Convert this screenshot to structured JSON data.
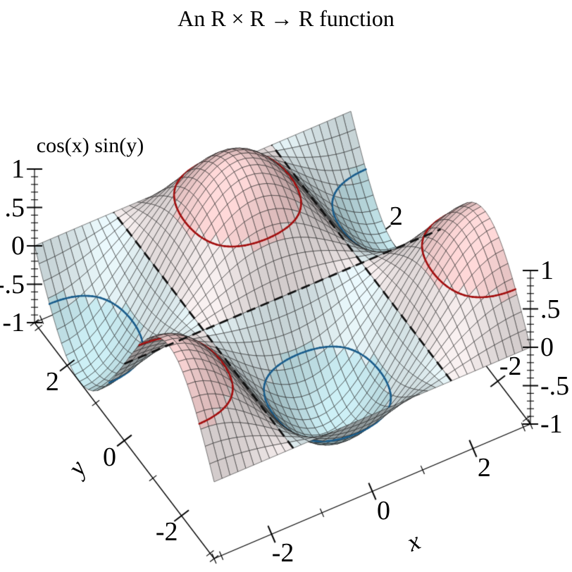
{
  "title": "An R × R → R function",
  "chart_data": {
    "type": "surface3d",
    "title": "An R × R → R function",
    "function": "z = cos(x) * sin(y)",
    "x_label": "x",
    "y_label": "y",
    "z_label": "cos(x) sin(y)",
    "axes": {
      "x": {
        "label": "x",
        "min": -3.14159265,
        "max": 3.14159265,
        "major_ticks": [
          -2,
          0,
          2
        ],
        "minor_ticks": [
          -3,
          -1,
          1,
          3
        ]
      },
      "y": {
        "label": "y",
        "min": -3.14159265,
        "max": 3.14159265,
        "major_ticks": [
          2,
          0,
          -2
        ],
        "minor_ticks": [
          3,
          1,
          -1,
          -3
        ],
        "rear_visible_labels": [
          2,
          -2
        ]
      },
      "z": {
        "label": "cos(x) sin(y)",
        "min": -1,
        "max": 1,
        "major_ticks": [
          1,
          0.5,
          0,
          -0.5,
          -1
        ],
        "major_tick_labels": [
          "1",
          ".5",
          "0",
          "-.5",
          "-1"
        ],
        "minor_tick_step": 0.1
      }
    },
    "mesh": {
      "nx": 40,
      "ny": 40
    },
    "surface_bands": [
      {
        "z_min": -1.0,
        "z_max": -0.5,
        "color": [
          196,
          229,
          235
        ]
      },
      {
        "z_min": -0.5,
        "z_max": 0.0,
        "color": [
          224,
          238,
          241
        ]
      },
      {
        "z_min": 0.0,
        "z_max": 0.5,
        "color": [
          238,
          230,
          230
        ]
      },
      {
        "z_min": 0.5,
        "z_max": 1.0,
        "color": [
          246,
          209,
          209
        ]
      }
    ],
    "contour_lines": [
      {
        "level": -0.5,
        "color": "#1b5e8d",
        "style": "solid"
      },
      {
        "level": 0.0,
        "color": "#111111",
        "style": "dashed"
      },
      {
        "level": 0.5,
        "color": "#a31111",
        "style": "solid"
      }
    ],
    "mesh_line_color": "#1c1c1c",
    "axis_color": "#000000",
    "background": "#ffffff"
  }
}
